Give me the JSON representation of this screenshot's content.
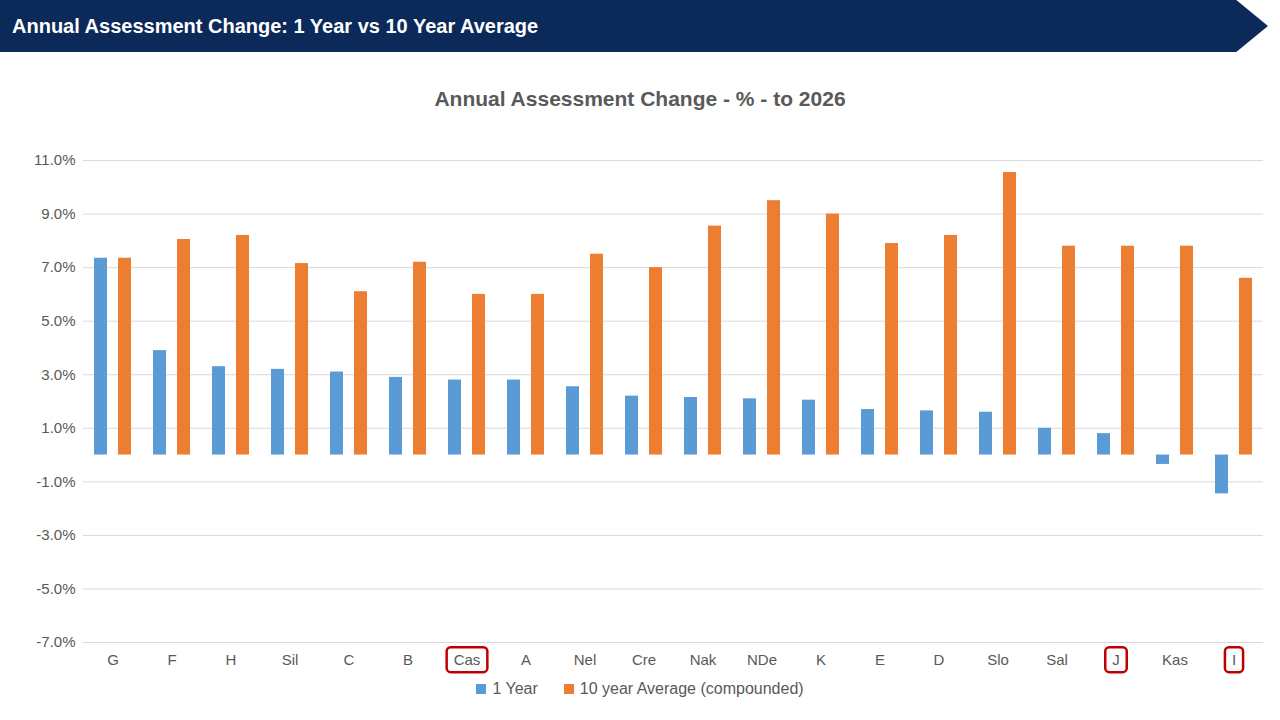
{
  "chart_data": {
    "type": "bar",
    "title": "Annual Assessment Change: 1 Year vs 10 Year Average",
    "subtitle": "Annual Assessment Change - % - to 2026",
    "categories": [
      "G",
      "F",
      "H",
      "Sil",
      "C",
      "B",
      "Cas",
      "A",
      "Nel",
      "Cre",
      "Nak",
      "NDe",
      "K",
      "E",
      "D",
      "Slo",
      "Sal",
      "J",
      "Kas",
      "I"
    ],
    "series": [
      {
        "name": "1 Year",
        "color": "#5b9bd5",
        "values": [
          7.35,
          3.9,
          3.3,
          3.2,
          3.1,
          2.9,
          2.8,
          2.8,
          2.55,
          2.2,
          2.15,
          2.1,
          2.05,
          1.7,
          1.65,
          1.6,
          1.0,
          0.8,
          -0.35,
          -1.45
        ]
      },
      {
        "name": "10 year Average (compounded)",
        "color": "#ed7d31",
        "values": [
          7.35,
          8.05,
          8.2,
          7.15,
          6.1,
          7.2,
          6.0,
          6.0,
          7.5,
          7.0,
          8.55,
          9.5,
          9.0,
          7.9,
          8.2,
          10.55,
          7.8,
          7.8,
          7.8,
          6.6
        ]
      }
    ],
    "highlight": [
      "Cas",
      "J",
      "I"
    ],
    "ylim": [
      -7,
      11
    ],
    "yticks": [
      {
        "value": -7,
        "label": "-7.0%"
      },
      {
        "value": -5,
        "label": "-5.0%"
      },
      {
        "value": -3,
        "label": "-3.0%"
      },
      {
        "value": -1,
        "label": "-1.0%"
      },
      {
        "value": 1,
        "label": "1.0%"
      },
      {
        "value": 3,
        "label": "3.0%"
      },
      {
        "value": 5,
        "label": "5.0%"
      },
      {
        "value": 7,
        "label": "7.0%"
      },
      {
        "value": 9,
        "label": "9.0%"
      },
      {
        "value": 11,
        "label": "11.0%"
      }
    ],
    "grid": true,
    "legend": "bottom"
  }
}
